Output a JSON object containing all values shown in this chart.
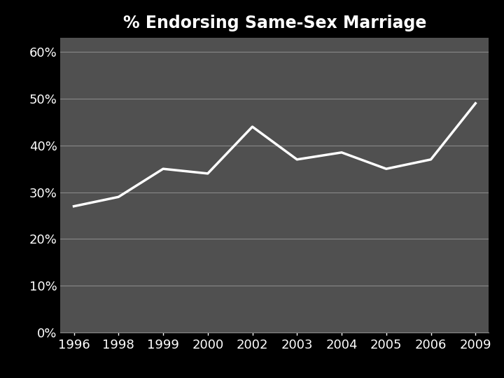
{
  "title": "% Endorsing Same-Sex Marriage",
  "x_labels": [
    "1996",
    "1998",
    "1999",
    "2000",
    "2002",
    "2003",
    "2004",
    "2005",
    "2006",
    "2009"
  ],
  "y_values": [
    0.27,
    0.29,
    0.35,
    0.34,
    0.44,
    0.37,
    0.385,
    0.35,
    0.37,
    0.49
  ],
  "y_ticks": [
    0.0,
    0.1,
    0.2,
    0.3,
    0.4,
    0.5,
    0.6
  ],
  "y_tick_labels": [
    "0%",
    "10%",
    "20%",
    "30%",
    "40%",
    "50%",
    "60%"
  ],
  "ylim": [
    0.0,
    0.63
  ],
  "line_color": "#ffffff",
  "line_width": 2.5,
  "bg_outer": "#000000",
  "bg_plot": "#505050",
  "grid_color": "#888888",
  "title_color": "#ffffff",
  "tick_label_color": "#ffffff",
  "title_fontsize": 17,
  "tick_fontsize": 13
}
